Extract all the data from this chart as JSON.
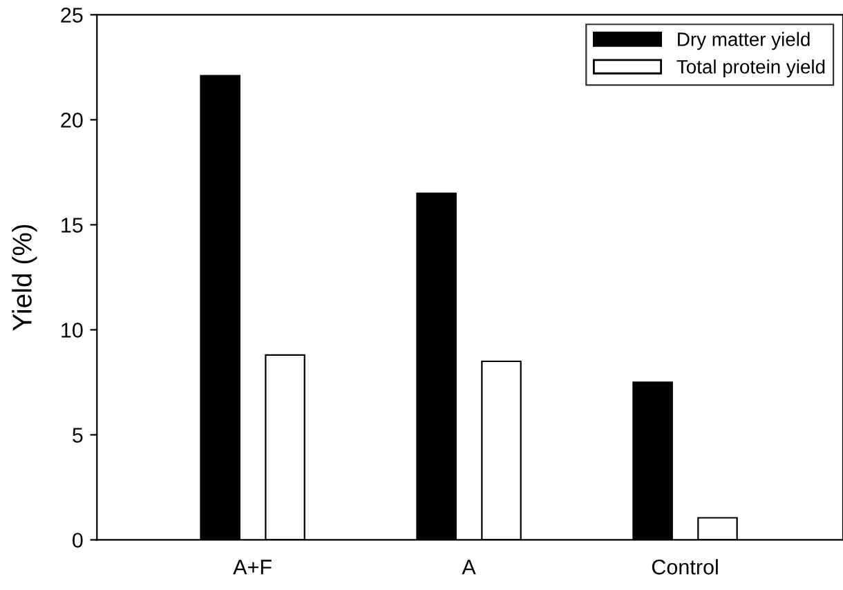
{
  "chart_data": {
    "type": "bar",
    "ylabel": "Yield (%)",
    "categories": [
      "A+F",
      "A",
      "Control"
    ],
    "series": [
      {
        "name": "Dry matter yield",
        "color": "#000000",
        "values": [
          22.1,
          16.5,
          7.5
        ]
      },
      {
        "name": "Total protein yield",
        "color": "#ffffff",
        "values": [
          8.8,
          8.5,
          1.05
        ]
      }
    ],
    "ylim": [
      0,
      25
    ],
    "yticks": [
      0,
      5,
      10,
      15,
      20,
      25
    ],
    "grid": false,
    "legend": "top right"
  }
}
